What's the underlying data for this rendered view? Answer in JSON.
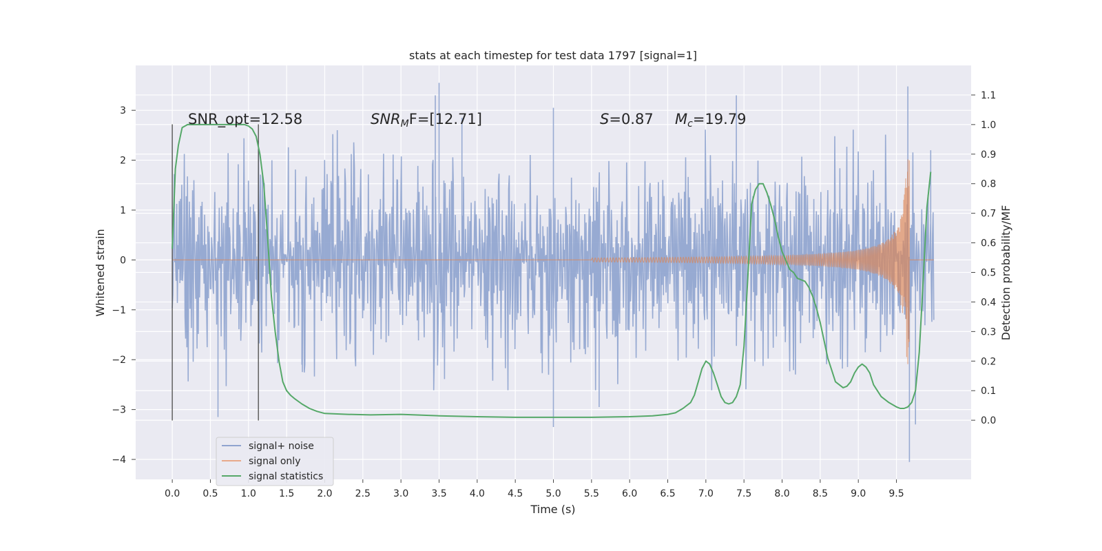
{
  "chart_data": {
    "type": "line",
    "title": "stats at each timestep for test data 1797 [signal=1]",
    "xlabel": "Time (s)",
    "ylabel": "Whitened strain",
    "ylabel_right": "Detection probability/MF",
    "xlim": [
      -0.48,
      10.48
    ],
    "ylim": [
      -4.4,
      3.9
    ],
    "ylim_right": [
      -0.2,
      1.2
    ],
    "grid": true,
    "legend_position": "lower-left",
    "xticks": [
      "0.0",
      "0.5",
      "1.0",
      "1.5",
      "2.0",
      "2.5",
      "3.0",
      "3.5",
      "4.0",
      "4.5",
      "5.0",
      "5.5",
      "6.0",
      "6.5",
      "7.0",
      "7.5",
      "8.0",
      "8.5",
      "9.0",
      "9.5"
    ],
    "yticks": [
      "3",
      "2",
      "1",
      "0",
      "−1",
      "−2",
      "−3",
      "−4"
    ],
    "yticks_right": [
      "1.1",
      "1.0",
      "0.9",
      "0.8",
      "0.7",
      "0.6",
      "0.5",
      "0.4",
      "0.3",
      "0.2",
      "0.1",
      "0.0"
    ],
    "annotations": {
      "snr_opt": "SNR_opt=12.58",
      "snr_mf_main": "SNR",
      "snr_mf_sub": "M",
      "snr_mf_rest": "F=[12.71]",
      "s_main": "S",
      "s_rest": "=0.87",
      "mc_main": "M",
      "mc_sub": "c",
      "mc_rest": "=19.79"
    },
    "vlines": [
      0.0,
      1.13
    ],
    "vline_range": [
      -3.22,
      2.72
    ],
    "series": [
      {
        "name": "signal+ noise",
        "color": "#8fa4cf",
        "axis": "left",
        "description_range": [
          0.0,
          9.99
        ],
        "envelope": {
          "typical_amplitude": 1.5,
          "max_peak": 3.55,
          "min_peak": -4.05
        }
      },
      {
        "name": "signal only",
        "color": "#dd8452",
        "axis": "left",
        "chirp": {
          "start": 5.5,
          "end": 9.67,
          "max_amplitude": 2.1
        }
      },
      {
        "name": "signal statistics",
        "color": "#55a868",
        "axis": "right",
        "x": [
          0.0,
          0.04,
          0.08,
          0.13,
          0.2,
          0.3,
          0.5,
          0.8,
          0.95,
          1.0,
          1.05,
          1.1,
          1.15,
          1.2,
          1.25,
          1.3,
          1.35,
          1.4,
          1.45,
          1.5,
          1.55,
          1.6,
          1.7,
          1.8,
          1.9,
          2.0,
          2.3,
          2.6,
          3.0,
          3.5,
          4.0,
          4.5,
          5.0,
          5.5,
          6.0,
          6.3,
          6.5,
          6.6,
          6.7,
          6.8,
          6.85,
          6.9,
          6.95,
          7.0,
          7.05,
          7.1,
          7.15,
          7.2,
          7.25,
          7.3,
          7.35,
          7.4,
          7.45,
          7.5,
          7.55,
          7.6,
          7.65,
          7.7,
          7.75,
          7.8,
          7.85,
          7.9,
          7.95,
          8.0,
          8.05,
          8.1,
          8.15,
          8.2,
          8.3,
          8.35,
          8.4,
          8.45,
          8.5,
          8.55,
          8.6,
          8.65,
          8.7,
          8.75,
          8.8,
          8.85,
          8.9,
          8.95,
          9.0,
          9.05,
          9.1,
          9.15,
          9.2,
          9.3,
          9.4,
          9.5,
          9.55,
          9.6,
          9.65,
          9.7,
          9.75,
          9.8,
          9.85,
          9.9,
          9.95
        ],
        "values": [
          0.58,
          0.85,
          0.93,
          0.99,
          1.0,
          1.0,
          1.0,
          1.0,
          1.0,
          0.995,
          0.985,
          0.96,
          0.9,
          0.8,
          0.62,
          0.42,
          0.3,
          0.2,
          0.13,
          0.1,
          0.085,
          0.074,
          0.055,
          0.04,
          0.03,
          0.023,
          0.02,
          0.018,
          0.02,
          0.015,
          0.012,
          0.01,
          0.01,
          0.01,
          0.012,
          0.015,
          0.02,
          0.025,
          0.04,
          0.06,
          0.085,
          0.13,
          0.175,
          0.2,
          0.19,
          0.16,
          0.12,
          0.08,
          0.06,
          0.055,
          0.06,
          0.08,
          0.12,
          0.25,
          0.48,
          0.73,
          0.78,
          0.8,
          0.8,
          0.77,
          0.73,
          0.68,
          0.62,
          0.57,
          0.54,
          0.51,
          0.5,
          0.48,
          0.47,
          0.45,
          0.42,
          0.38,
          0.33,
          0.27,
          0.21,
          0.17,
          0.13,
          0.12,
          0.11,
          0.115,
          0.13,
          0.16,
          0.18,
          0.19,
          0.18,
          0.16,
          0.12,
          0.08,
          0.06,
          0.045,
          0.04,
          0.04,
          0.045,
          0.06,
          0.1,
          0.23,
          0.47,
          0.72,
          0.84
        ]
      }
    ]
  }
}
